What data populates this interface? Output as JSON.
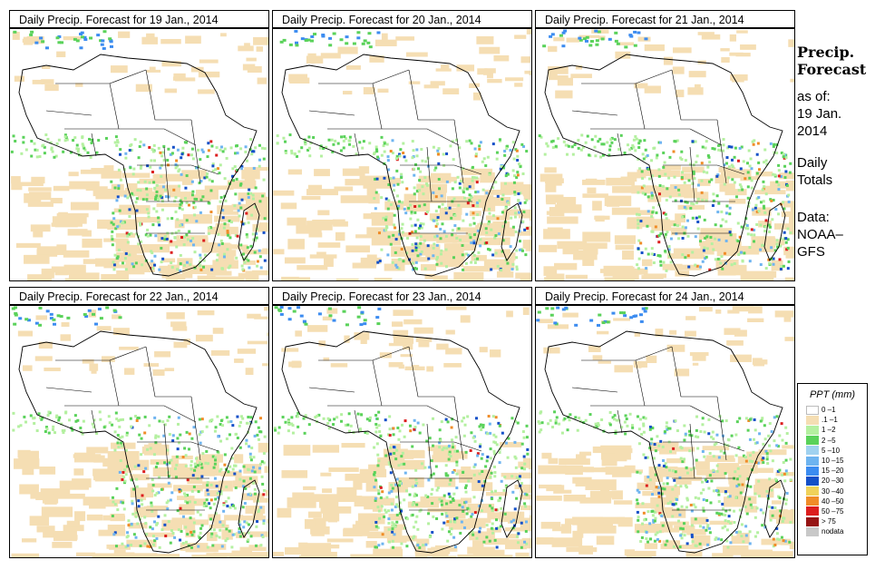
{
  "panels": [
    {
      "title": "Daily Precip. Forecast for  19 Jan., 2014"
    },
    {
      "title": "Daily Precip. Forecast for  20 Jan., 2014"
    },
    {
      "title": "Daily Precip. Forecast for  21 Jan., 2014"
    },
    {
      "title": "Daily Precip. Forecast for  22 Jan., 2014"
    },
    {
      "title": "Daily Precip. Forecast for  23 Jan., 2014"
    },
    {
      "title": "Daily Precip. Forecast for  24 Jan., 2014"
    }
  ],
  "side": {
    "title_line1": "Precip.",
    "title_line2": "Forecast",
    "asof_line1": "as of:",
    "asof_line2": "19 Jan.",
    "asof_line3": "2014",
    "daily_line1": "Daily",
    "daily_line2": "Totals",
    "source_line1": "Data:",
    "source_line2": "NOAA–",
    "source_line3": "GFS"
  },
  "legend": {
    "title": "PPT (mm)",
    "entries": [
      {
        "label": "0 –1",
        "color": "#ffffff"
      },
      {
        "label": ".1 –1",
        "color": "#f5deb3"
      },
      {
        "label": "1 –2",
        "color": "#b4f0a0"
      },
      {
        "label": "2 –5",
        "color": "#5ad25a"
      },
      {
        "label": "5 –10",
        "color": "#a0d2f0"
      },
      {
        "label": "10 –15",
        "color": "#6eb4f0"
      },
      {
        "label": "15 –20",
        "color": "#3c8cf0"
      },
      {
        "label": "20 –30",
        "color": "#1450c8"
      },
      {
        "label": "30 –40",
        "color": "#f0d25a"
      },
      {
        "label": "40 –50",
        "color": "#f08c28"
      },
      {
        "label": "50 –75",
        "color": "#dc1e1e"
      },
      {
        "label": "> 75",
        "color": "#961414"
      },
      {
        "label": "nodata",
        "color": "#c8c8c8"
      }
    ]
  }
}
